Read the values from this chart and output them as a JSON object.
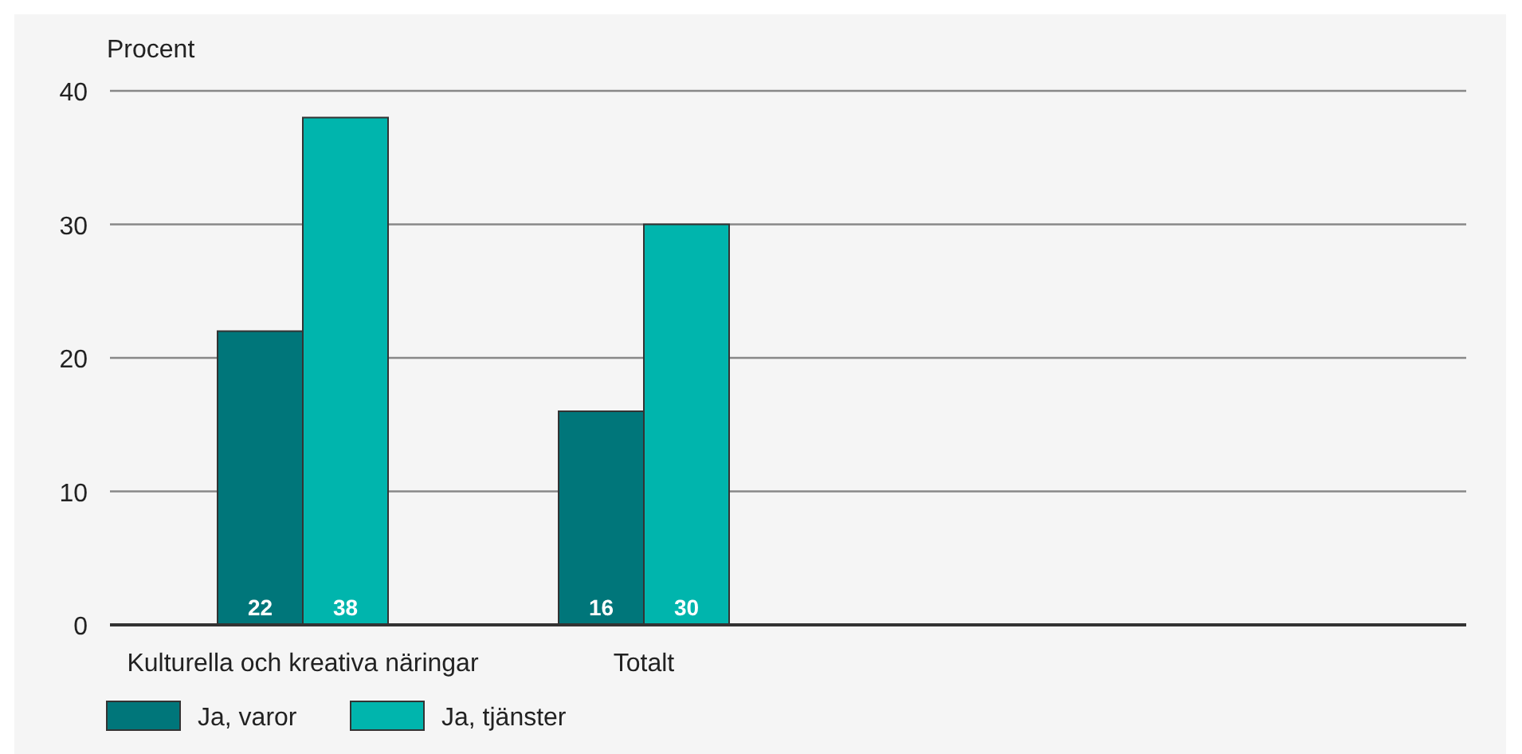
{
  "chart_data": {
    "type": "bar",
    "ylabel": "Procent",
    "categories": [
      "Kulturella och kreativa näringar",
      "Totalt",
      null,
      null
    ],
    "series": [
      {
        "name": "Ja, varor",
        "color": "#00767a",
        "values": [
          22,
          16,
          null,
          null
        ]
      },
      {
        "name": "Ja, tjänster",
        "color": "#00b5ad",
        "values": [
          38,
          30,
          null,
          null
        ]
      }
    ],
    "ylim": [
      0,
      40
    ],
    "yticks": [
      0,
      10,
      20,
      30,
      40
    ],
    "grid": "y",
    "legend": "bottom",
    "data_labels": true
  }
}
